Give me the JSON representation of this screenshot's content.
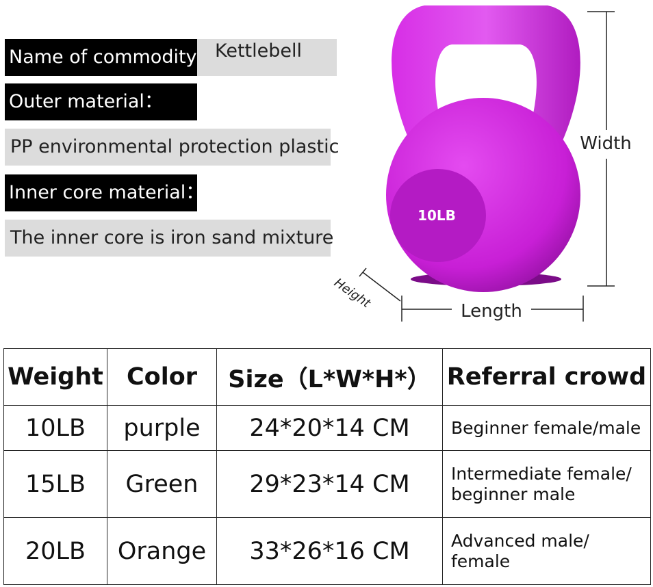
{
  "specs": [
    {
      "label": "Name of commodity：",
      "value": "Kettlebell"
    },
    {
      "label": "Outer material：",
      "value": "PP environmental protection plastic"
    },
    {
      "label": "Inner core material：",
      "value": "The inner core is iron sand mixture"
    }
  ],
  "product": {
    "badge": "10LB",
    "width": "Width",
    "length": "Length",
    "height": "Height"
  },
  "table": {
    "header": [
      "Weight",
      "Color",
      "Size（L*W*H*）",
      "Referral crowd"
    ],
    "rows": [
      [
        "10LB",
        "purple",
        "24*20*14 CM",
        "Beginner female/male"
      ],
      [
        "15LB",
        "Green",
        "29*23*14 CM",
        "Intermediate female/ beginner male"
      ],
      [
        "20LB",
        "Orange",
        "33*26*16 CM",
        "Advanced male/ female"
      ]
    ]
  }
}
